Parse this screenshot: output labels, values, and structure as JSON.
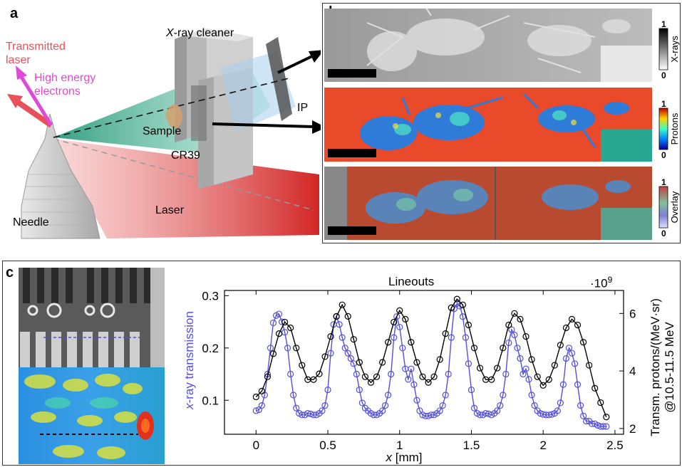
{
  "panel_a": {
    "letter": "a",
    "labels": {
      "xray_cleaner_prefix": "X",
      "xray_cleaner_rest": "-ray cleaner",
      "transmitted_laser": [
        "Transmitted",
        "laser"
      ],
      "high_energy": [
        "High energy",
        "electrons"
      ],
      "sample": "Sample",
      "cr39": "CR39",
      "ip": "IP",
      "needle": "Needle",
      "laser": "Laser"
    },
    "colors": {
      "transmitted": "#e8505a",
      "electrons": "#e048d8",
      "proton_beam": "#38b898",
      "laser_beam": "#d01a1a"
    }
  },
  "panel_b": {
    "letter": "b",
    "rows": [
      {
        "colorbar_label": "X-rays",
        "max": "1",
        "min": "0"
      },
      {
        "colorbar_label": "Protons",
        "max": "1",
        "min": "0"
      },
      {
        "colorbar_label": "Overlay",
        "max": "1",
        "min": "0"
      }
    ]
  },
  "panel_c": {
    "letter": "c",
    "chart_data": {
      "type": "line",
      "title": "Lineouts",
      "xlabel_italic": "x",
      "xlabel_rest": " [mm]",
      "ylabel_left": "x-ray transmission",
      "ylabel_right_lines": [
        "Transm. protons/(MeV·sr)",
        "@10.5-11.5 MeV"
      ],
      "right_axis_multiplier": "·10",
      "right_axis_multiplier_exp": "9",
      "xlim": [
        -0.22,
        2.56
      ],
      "ylim_left": [
        0.035,
        0.31
      ],
      "ylim_right": [
        1.8,
        6.8
      ],
      "x_ticks": [
        0,
        0.5,
        1,
        1.5,
        2,
        2.5
      ],
      "x_tick_labels": [
        "0",
        "0.5",
        "1",
        "1.5",
        "2",
        "2.5"
      ],
      "y_left_ticks": [
        0.1,
        0.2,
        0.3
      ],
      "y_left_tick_labels": [
        "0.1",
        "0.2",
        "0.3"
      ],
      "y_right_ticks": [
        2,
        4,
        6
      ],
      "y_right_tick_labels": [
        "2",
        "4",
        "6"
      ],
      "series": [
        {
          "axis": "left",
          "color": "#5550d8",
          "x": [
            0,
            0.02,
            0.04,
            0.06,
            0.08,
            0.1,
            0.12,
            0.14,
            0.16,
            0.18,
            0.2,
            0.22,
            0.24,
            0.26,
            0.28,
            0.3,
            0.32,
            0.34,
            0.36,
            0.38,
            0.4,
            0.42,
            0.44,
            0.46,
            0.48,
            0.5,
            0.52,
            0.54,
            0.56,
            0.58,
            0.6,
            0.62,
            0.64,
            0.66,
            0.68,
            0.7,
            0.72,
            0.74,
            0.76,
            0.78,
            0.8,
            0.82,
            0.84,
            0.86,
            0.88,
            0.9,
            0.92,
            0.94,
            0.96,
            0.98,
            1,
            1.02,
            1.04,
            1.06,
            1.08,
            1.1,
            1.12,
            1.14,
            1.16,
            1.18,
            1.2,
            1.22,
            1.24,
            1.26,
            1.28,
            1.3,
            1.32,
            1.34,
            1.36,
            1.38,
            1.4,
            1.42,
            1.44,
            1.46,
            1.48,
            1.5,
            1.52,
            1.54,
            1.56,
            1.58,
            1.6,
            1.62,
            1.64,
            1.66,
            1.68,
            1.7,
            1.72,
            1.74,
            1.76,
            1.78,
            1.8,
            1.82,
            1.84,
            1.86,
            1.88,
            1.9,
            1.92,
            1.94,
            1.96,
            1.98,
            2,
            2.02,
            2.04,
            2.06,
            2.08,
            2.1,
            2.12,
            2.14,
            2.16,
            2.18,
            2.2,
            2.22,
            2.24,
            2.26,
            2.28,
            2.3,
            2.32,
            2.34,
            2.36,
            2.38,
            2.4,
            2.42,
            2.44
          ],
          "y": [
            0.08,
            0.082,
            0.09,
            0.11,
            0.15,
            0.2,
            0.248,
            0.262,
            0.265,
            0.25,
            0.23,
            0.2,
            0.15,
            0.11,
            0.085,
            0.075,
            0.072,
            0.072,
            0.075,
            0.074,
            0.072,
            0.072,
            0.075,
            0.08,
            0.09,
            0.12,
            0.19,
            0.245,
            0.26,
            0.245,
            0.22,
            0.2,
            0.19,
            0.18,
            0.17,
            0.15,
            0.12,
            0.095,
            0.085,
            0.08,
            0.075,
            0.072,
            0.072,
            0.075,
            0.08,
            0.09,
            0.11,
            0.15,
            0.22,
            0.26,
            0.24,
            0.2,
            0.16,
            0.14,
            0.16,
            0.13,
            0.1,
            0.08,
            0.072,
            0.07,
            0.07,
            0.072,
            0.072,
            0.075,
            0.08,
            0.09,
            0.11,
            0.15,
            0.22,
            0.275,
            0.285,
            0.28,
            0.26,
            0.22,
            0.17,
            0.12,
            0.085,
            0.075,
            0.072,
            0.072,
            0.075,
            0.074,
            0.072,
            0.075,
            0.08,
            0.09,
            0.11,
            0.15,
            0.21,
            0.235,
            0.225,
            0.2,
            0.18,
            0.15,
            0.16,
            0.14,
            0.11,
            0.09,
            0.08,
            0.075,
            0.073,
            0.072,
            0.072,
            0.073,
            0.075,
            0.08,
            0.095,
            0.13,
            0.18,
            0.2,
            0.19,
            0.17,
            0.13,
            0.09,
            0.07,
            0.06,
            0.06,
            0.055,
            0.055,
            0.052,
            0.05,
            0.05,
            0.05
          ]
        },
        {
          "axis": "right",
          "color": "#000000",
          "x": [
            0,
            0.04,
            0.08,
            0.12,
            0.16,
            0.2,
            0.24,
            0.28,
            0.32,
            0.36,
            0.4,
            0.44,
            0.48,
            0.52,
            0.56,
            0.6,
            0.64,
            0.68,
            0.72,
            0.76,
            0.8,
            0.84,
            0.88,
            0.92,
            0.96,
            1,
            1.04,
            1.08,
            1.12,
            1.16,
            1.2,
            1.24,
            1.28,
            1.32,
            1.36,
            1.4,
            1.44,
            1.48,
            1.52,
            1.56,
            1.6,
            1.64,
            1.68,
            1.72,
            1.76,
            1.8,
            1.84,
            1.88,
            1.92,
            1.96,
            2,
            2.04,
            2.08,
            2.12,
            2.16,
            2.2,
            2.24,
            2.28,
            2.32,
            2.36,
            2.4,
            2.44
          ],
          "y": [
            3.1,
            3.3,
            3.8,
            4.6,
            5.3,
            5.7,
            5.5,
            4.8,
            4.2,
            3.7,
            3.7,
            3.9,
            4.5,
            5.2,
            5.9,
            6.3,
            5.9,
            5.1,
            4.3,
            3.8,
            3.6,
            3.8,
            4.3,
            5.0,
            5.7,
            6.1,
            5.8,
            5.0,
            4.3,
            3.8,
            3.6,
            3.8,
            4.4,
            5.3,
            6.2,
            6.5,
            6.3,
            5.6,
            4.8,
            4.1,
            3.7,
            3.7,
            4.1,
            4.8,
            5.6,
            6.0,
            5.8,
            5.2,
            4.4,
            3.8,
            3.5,
            3.7,
            4.2,
            4.9,
            5.5,
            5.8,
            5.6,
            5.0,
            4.2,
            3.4,
            2.9,
            2.4
          ]
        }
      ]
    }
  }
}
